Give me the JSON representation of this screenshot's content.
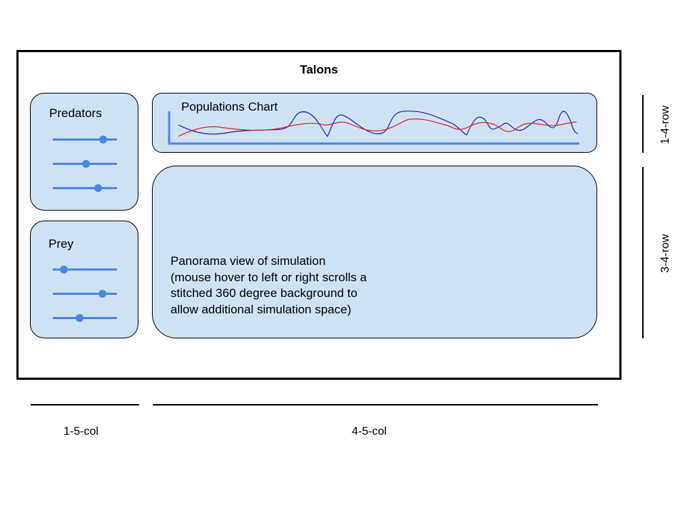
{
  "app": {
    "title": "Talons"
  },
  "predators": {
    "label": "Predators",
    "sliders": [
      {
        "value": 0.78
      },
      {
        "value": 0.51
      },
      {
        "value": 0.7
      }
    ]
  },
  "prey": {
    "label": "Prey",
    "sliders": [
      {
        "value": 0.17
      },
      {
        "value": 0.77
      },
      {
        "value": 0.41
      }
    ]
  },
  "chart": {
    "label": "Populations Chart",
    "colors": {
      "axis": "#4a86e8",
      "series1": "#1f1fbf",
      "series2": "#e02020"
    }
  },
  "panorama": {
    "lines": [
      "Panorama view of simulation",
      "(mouse hover to left or right scrolls a",
      "stitched 360 degree background to",
      "allow additional simulation space)"
    ]
  },
  "annotations": {
    "col_left": "1-5-col",
    "col_right": "4-5-col",
    "row_top": "1-4-row",
    "row_bottom": "3-4-row"
  }
}
